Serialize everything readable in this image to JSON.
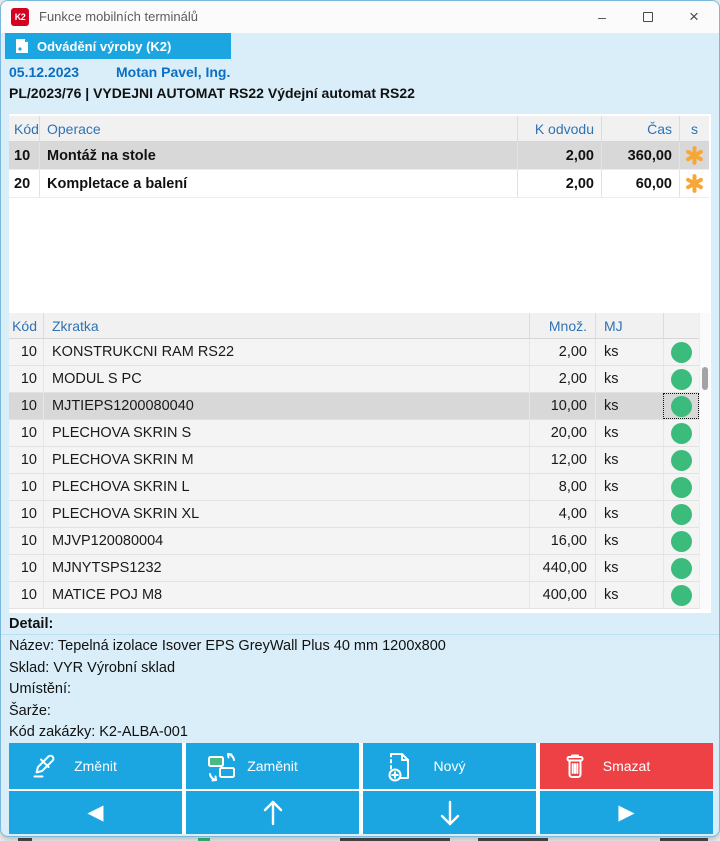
{
  "window": {
    "title": "Funkce mobilních terminálů",
    "app_icon_text": "K2",
    "controls": {
      "minimize": "–",
      "close": "×"
    }
  },
  "tab": {
    "label": "Odvádění výroby (K2)"
  },
  "header": {
    "date": "05.12.2023",
    "user": "Motan Pavel, Ing.",
    "order_line": "PL/2023/76 | VYDEJNI AUTOMAT RS22 Výdejní automat RS22"
  },
  "operations_table": {
    "columns": [
      "Kód",
      "Operace",
      "K odvodu",
      "Čas",
      "s"
    ],
    "rows": [
      {
        "kod": "10",
        "operace": "Montáž na stole",
        "k_odvodu": "2,00",
        "cas": "360,00",
        "selected": true
      },
      {
        "kod": "20",
        "operace": "Kompletace a balení",
        "k_odvodu": "2,00",
        "cas": "60,00",
        "selected": false
      }
    ]
  },
  "items_table": {
    "columns": [
      "Kód",
      "Zkratka",
      "Množ.",
      "MJ"
    ],
    "rows": [
      {
        "kod": "10",
        "zkratka": "KONSTRUKCNI RAM RS22",
        "mnoz": "2,00",
        "mj": "ks",
        "selected": false
      },
      {
        "kod": "10",
        "zkratka": "MODUL S PC",
        "mnoz": "2,00",
        "mj": "ks",
        "selected": false
      },
      {
        "kod": "10",
        "zkratka": "MJTIEPS1200080040",
        "mnoz": "10,00",
        "mj": "ks",
        "selected": true
      },
      {
        "kod": "10",
        "zkratka": "PLECHOVA SKRIN S",
        "mnoz": "20,00",
        "mj": "ks",
        "selected": false
      },
      {
        "kod": "10",
        "zkratka": "PLECHOVA SKRIN M",
        "mnoz": "12,00",
        "mj": "ks",
        "selected": false
      },
      {
        "kod": "10",
        "zkratka": "PLECHOVA SKRIN L",
        "mnoz": "8,00",
        "mj": "ks",
        "selected": false
      },
      {
        "kod": "10",
        "zkratka": "PLECHOVA SKRIN XL",
        "mnoz": "4,00",
        "mj": "ks",
        "selected": false
      },
      {
        "kod": "10",
        "zkratka": "MJVP120080004",
        "mnoz": "16,00",
        "mj": "ks",
        "selected": false
      },
      {
        "kod": "10",
        "zkratka": "MJNYTSPS1232",
        "mnoz": "440,00",
        "mj": "ks",
        "selected": false
      },
      {
        "kod": "10",
        "zkratka": "MATICE POJ M8",
        "mnoz": "400,00",
        "mj": "ks",
        "selected": false
      }
    ]
  },
  "detail": {
    "title": "Detail:",
    "lines": [
      "Název: Tepelná izolace Isover EPS GreyWall Plus 40 mm 1200x800",
      "Sklad: VYR Výrobní sklad",
      "Umístění:",
      "Šarže:",
      "Kód zakázky: K2-ALBA-001"
    ]
  },
  "actions": {
    "change": "Změnit",
    "swap": "Zaměnit",
    "new": "Nový",
    "delete": "Smazat"
  },
  "colors": {
    "accent_blue": "#1ba6e2",
    "light_blue_bg": "#d9eef9",
    "delete_red": "#ee4146",
    "status_green": "#3cbc7c",
    "flag_orange": "#f7a738",
    "header_text_blue": "#2e73b5",
    "info_text_blue": "#0a6fc2",
    "selected_row_gray": "#d8d8d8"
  }
}
